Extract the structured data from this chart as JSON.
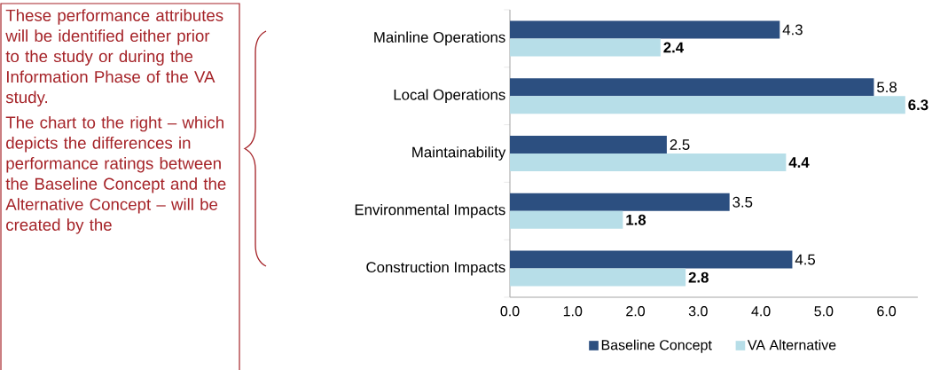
{
  "chart_data": {
    "type": "bar",
    "orientation": "horizontal",
    "categories": [
      "Mainline Operations",
      "Local Operations",
      "Maintainability",
      "Environmental Impacts",
      "Construction Impacts"
    ],
    "series": [
      {
        "name": "Baseline Concept",
        "color": "#2c4f80",
        "values": [
          4.3,
          5.8,
          2.5,
          3.5,
          4.5
        ]
      },
      {
        "name": "VA Alternative",
        "color": "#b7dee8",
        "values": [
          2.4,
          6.3,
          4.4,
          1.8,
          2.8
        ]
      }
    ],
    "xlim": [
      0,
      6.5
    ],
    "xticks": [
      {
        "value": 0,
        "label": "0.0"
      },
      {
        "value": 1,
        "label": "1.0"
      },
      {
        "value": 2,
        "label": "2.0"
      },
      {
        "value": 3,
        "label": "3.0"
      },
      {
        "value": 4,
        "label": "4.0"
      },
      {
        "value": 5,
        "label": "5.0"
      },
      {
        "value": 6,
        "label": "6.0"
      }
    ],
    "data_labels": true,
    "legend": "bottom",
    "annotations": [
      "These performance attributes will be identified either prior to the study or during the Information Phase of the VA study.",
      "The chart to the right – which depicts the differences in performance ratings between the Baseline Concept and the Alternative Concept – will be created by the"
    ]
  }
}
